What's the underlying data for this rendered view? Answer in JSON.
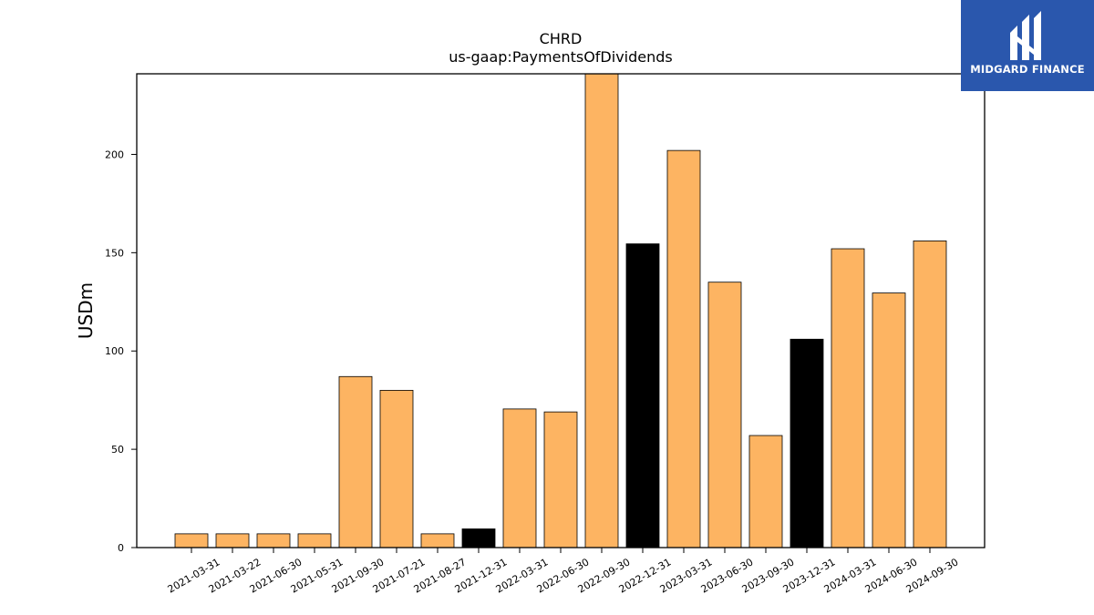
{
  "brand": {
    "name": "MIDGARD FINANCE",
    "bg_color": "#2a57ad",
    "icon": "midgard-logo-icon"
  },
  "chart_data": {
    "type": "bar",
    "title": "CHRD",
    "subtitle": "us-gaap:PaymentsOfDividends",
    "xlabel": "",
    "ylabel": "USDm",
    "ylim": [
      0,
      241
    ],
    "yticks": [
      0,
      50,
      100,
      150,
      200
    ],
    "grid": false,
    "legend": "none",
    "categories": [
      "2021-03-31",
      "2021-03-22",
      "2021-06-30",
      "2021-05-31",
      "2021-09-30",
      "2021-07-21",
      "2021-08-27",
      "2021-12-31",
      "2022-03-31",
      "2022-06-30",
      "2022-09-30",
      "2022-12-31",
      "2023-03-31",
      "2023-06-30",
      "2023-09-30",
      "2023-12-31",
      "2024-03-31",
      "2024-06-30",
      "2024-09-30"
    ],
    "values": [
      7,
      7,
      7,
      7,
      87,
      80,
      7,
      9.5,
      70.5,
      69,
      241,
      154.5,
      202,
      135,
      57,
      106,
      152,
      129.5,
      156
    ],
    "highlighted": [
      false,
      false,
      false,
      false,
      false,
      false,
      false,
      true,
      false,
      false,
      false,
      true,
      false,
      false,
      false,
      true,
      false,
      false,
      false
    ],
    "colors": {
      "bar": "#fdb462",
      "highlight": "#000000",
      "edge": "#000000"
    }
  }
}
